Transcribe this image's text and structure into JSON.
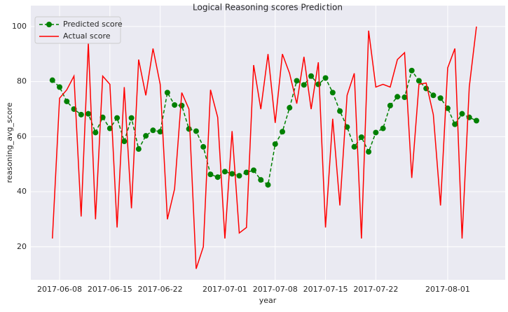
{
  "chart_data": {
    "type": "line",
    "title": "Logical Reasoning scores Prediction",
    "x_label": "year",
    "y_label": "reasoning_avg_score",
    "x": [
      "2017-06-07",
      "2017-06-08",
      "2017-06-09",
      "2017-06-10",
      "2017-06-11",
      "2017-06-12",
      "2017-06-13",
      "2017-06-14",
      "2017-06-15",
      "2017-06-16",
      "2017-06-17",
      "2017-06-18",
      "2017-06-19",
      "2017-06-20",
      "2017-06-21",
      "2017-06-22",
      "2017-06-23",
      "2017-06-24",
      "2017-06-25",
      "2017-06-26",
      "2017-06-27",
      "2017-06-28",
      "2017-06-29",
      "2017-06-30",
      "2017-07-01",
      "2017-07-02",
      "2017-07-03",
      "2017-07-04",
      "2017-07-05",
      "2017-07-06",
      "2017-07-07",
      "2017-07-08",
      "2017-07-09",
      "2017-07-10",
      "2017-07-11",
      "2017-07-12",
      "2017-07-13",
      "2017-07-14",
      "2017-07-15",
      "2017-07-16",
      "2017-07-17",
      "2017-07-18",
      "2017-07-19",
      "2017-07-20",
      "2017-07-21",
      "2017-07-22",
      "2017-07-23",
      "2017-07-24",
      "2017-07-25",
      "2017-07-26",
      "2017-07-27",
      "2017-07-28",
      "2017-07-29",
      "2017-07-30",
      "2017-07-31",
      "2017-08-01",
      "2017-08-02",
      "2017-08-03",
      "2017-08-04",
      "2017-08-05"
    ],
    "series": [
      {
        "name": "Predicted score",
        "color": "#008000",
        "linestyle": "dashed",
        "marker": "circle",
        "values": [
          80.5,
          78,
          72.8,
          70,
          68,
          68.3,
          61.5,
          67,
          63,
          66.8,
          58.3,
          66.8,
          55.5,
          60.3,
          62.3,
          61.8,
          76,
          71.5,
          71.3,
          62.8,
          62,
          56.3,
          46.3,
          45.3,
          47.3,
          46.5,
          45.8,
          47,
          47.8,
          44.3,
          42.5,
          57.3,
          61.8,
          70.5,
          80.3,
          78.8,
          82,
          79,
          81.3,
          76,
          69.3,
          63.5,
          56.3,
          59.8,
          54.5,
          61.5,
          63,
          71.3,
          74.5,
          74.3,
          84,
          80.3,
          77.5,
          75,
          74,
          70.3,
          64.5,
          68.3,
          67,
          65.8
        ]
      },
      {
        "name": "Actual score",
        "color": "#ff0000",
        "linestyle": "solid",
        "marker": "none",
        "values": [
          23,
          74,
          77,
          82,
          31,
          94,
          30,
          82,
          79,
          27,
          78,
          34,
          88,
          75,
          92,
          79,
          30,
          41,
          76,
          70,
          12,
          20,
          77,
          67,
          23,
          62,
          25,
          27,
          86,
          70,
          90,
          65,
          90,
          83,
          72,
          89,
          70,
          87,
          27,
          66.5,
          35,
          75,
          83,
          23,
          98.5,
          78,
          79,
          78,
          88,
          90.5,
          45,
          79,
          79.5,
          68,
          35,
          85,
          92,
          23,
          78,
          100
        ]
      }
    ],
    "xlim": [
      "2017-06-04",
      "2017-08-09"
    ],
    "xticks": [
      "2017-06-08",
      "2017-06-15",
      "2017-06-22",
      "2017-07-01",
      "2017-07-08",
      "2017-07-15",
      "2017-07-22",
      "2017-08-01"
    ],
    "ylim": [
      8,
      107.6
    ],
    "yticks": [
      20,
      40,
      60,
      80,
      100
    ],
    "grid": true,
    "legend": "upper left"
  }
}
